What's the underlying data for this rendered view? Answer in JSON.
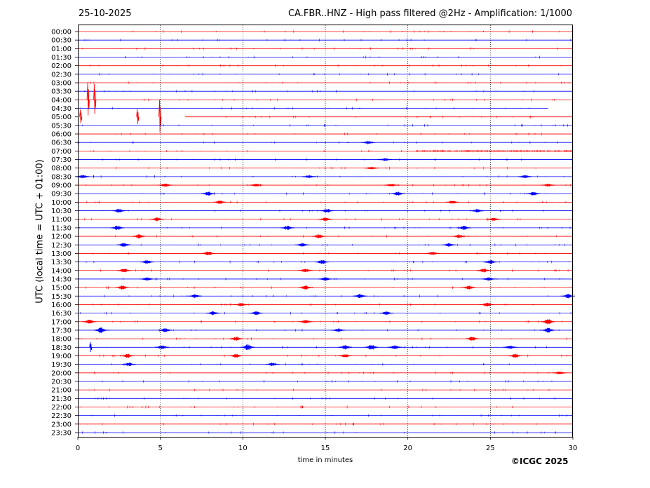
{
  "header": {
    "date": "25-10-2025",
    "title": "CA.FBR..HNZ - High pass filtered @2Hz - Amplification: 1/1000"
  },
  "footer": {
    "copyright": "©ICGC 2025"
  },
  "chart_data": {
    "type": "line",
    "title": "CA.FBR..HNZ - High pass filtered @2Hz - Amplification: 1/1000",
    "xlabel": "time in minutes",
    "ylabel": "UTC (local time = UTC + 01:00)",
    "xlim": [
      0,
      30
    ],
    "x_ticks": [
      0,
      5,
      10,
      15,
      20,
      25,
      30
    ],
    "x_gridlines": [
      5,
      10,
      15,
      20,
      25
    ],
    "grid": "vertical dotted",
    "y_tick_labels": [
      "00:00",
      "00:30",
      "01:00",
      "01:30",
      "02:00",
      "02:30",
      "03:00",
      "03:30",
      "04:00",
      "04:30",
      "05:00",
      "05:30",
      "06:00",
      "06:30",
      "07:00",
      "07:30",
      "08:00",
      "08:30",
      "09:00",
      "09:30",
      "10:00",
      "10:30",
      "11:00",
      "11:30",
      "12:00",
      "12:30",
      "13:00",
      "13:30",
      "14:00",
      "14:30",
      "15:00",
      "15:30",
      "16:00",
      "16:30",
      "17:00",
      "17:30",
      "18:00",
      "18:30",
      "19:00",
      "19:30",
      "20:00",
      "20:30",
      "21:00",
      "21:30",
      "22:00",
      "22:30",
      "23:00",
      "23:30"
    ],
    "trace_colors": [
      "#ff0000",
      "#0000ff"
    ],
    "gap": {
      "trace": "04:30",
      "from_minute": 28.5,
      "to_minute": 30
    },
    "gap_start": {
      "trace": "05:00",
      "from_minute": 0,
      "to_minute": 6.5
    },
    "large_spikes": [
      {
        "trace": "04:00",
        "minute": 0.6,
        "amplitude": 1.0
      },
      {
        "trace": "04:00",
        "minute": 1.0,
        "amplitude": 0.9
      },
      {
        "trace": "05:00",
        "minute": 0.15,
        "amplitude": 0.4
      },
      {
        "trace": "05:00",
        "minute": 3.6,
        "amplitude": 0.45
      },
      {
        "trace": "05:00",
        "minute": 4.95,
        "amplitude": 1.0
      },
      {
        "trace": "18:30",
        "minute": 0.75,
        "amplitude": 0.3
      }
    ],
    "events": [
      {
        "trace": "06:30",
        "minute": 17.6,
        "amplitude": 0.25
      },
      {
        "trace": "07:00",
        "from_minute": 20.5,
        "to_minute": 30,
        "amplitude": 0.15
      },
      {
        "trace": "07:30",
        "minute": 18.6,
        "amplitude": 0.2
      },
      {
        "trace": "08:00",
        "minute": 17.8,
        "amplitude": 0.2
      },
      {
        "trace": "08:30",
        "minute": 0.3,
        "amplitude": 0.25
      },
      {
        "trace": "08:30",
        "minute": 14.0,
        "amplitude": 0.2
      },
      {
        "trace": "08:30",
        "minute": 27.1,
        "amplitude": 0.2
      },
      {
        "trace": "09:00",
        "minute": 5.3,
        "amplitude": 0.25
      },
      {
        "trace": "09:00",
        "minute": 10.8,
        "amplitude": 0.2
      },
      {
        "trace": "09:00",
        "minute": 19.0,
        "amplitude": 0.2
      },
      {
        "trace": "09:00",
        "minute": 28.5,
        "amplitude": 0.2
      },
      {
        "trace": "09:30",
        "minute": 7.9,
        "amplitude": 0.3
      },
      {
        "trace": "09:30",
        "minute": 19.4,
        "amplitude": 0.3
      },
      {
        "trace": "09:30",
        "minute": 27.6,
        "amplitude": 0.25
      },
      {
        "trace": "10:00",
        "minute": 8.6,
        "amplitude": 0.25
      },
      {
        "trace": "10:00",
        "minute": 22.7,
        "amplitude": 0.2
      },
      {
        "trace": "10:30",
        "minute": 2.5,
        "amplitude": 0.3
      },
      {
        "trace": "10:30",
        "minute": 15.1,
        "amplitude": 0.3
      },
      {
        "trace": "10:30",
        "minute": 24.2,
        "amplitude": 0.25
      },
      {
        "trace": "11:00",
        "minute": 4.8,
        "amplitude": 0.3
      },
      {
        "trace": "11:00",
        "minute": 15.0,
        "amplitude": 0.25
      },
      {
        "trace": "11:00",
        "minute": 25.2,
        "amplitude": 0.25
      },
      {
        "trace": "11:30",
        "minute": 2.4,
        "amplitude": 0.35
      },
      {
        "trace": "11:30",
        "minute": 12.7,
        "amplitude": 0.3
      },
      {
        "trace": "11:30",
        "minute": 23.4,
        "amplitude": 0.3
      },
      {
        "trace": "12:00",
        "minute": 3.7,
        "amplitude": 0.3
      },
      {
        "trace": "12:00",
        "minute": 14.6,
        "amplitude": 0.3
      },
      {
        "trace": "12:00",
        "minute": 23.1,
        "amplitude": 0.25
      },
      {
        "trace": "12:30",
        "minute": 2.8,
        "amplitude": 0.3
      },
      {
        "trace": "12:30",
        "minute": 13.6,
        "amplitude": 0.25
      },
      {
        "trace": "12:30",
        "minute": 22.5,
        "amplitude": 0.25
      },
      {
        "trace": "13:00",
        "minute": 7.9,
        "amplitude": 0.3
      },
      {
        "trace": "13:00",
        "minute": 21.5,
        "amplitude": 0.25
      },
      {
        "trace": "13:30",
        "minute": 4.2,
        "amplitude": 0.3
      },
      {
        "trace": "13:30",
        "minute": 14.8,
        "amplitude": 0.3
      },
      {
        "trace": "13:30",
        "minute": 25.0,
        "amplitude": 0.3
      },
      {
        "trace": "14:00",
        "minute": 2.8,
        "amplitude": 0.3
      },
      {
        "trace": "14:00",
        "minute": 13.8,
        "amplitude": 0.3
      },
      {
        "trace": "14:00",
        "minute": 24.6,
        "amplitude": 0.3
      },
      {
        "trace": "14:30",
        "minute": 4.2,
        "amplitude": 0.25
      },
      {
        "trace": "14:30",
        "minute": 15.0,
        "amplitude": 0.25
      },
      {
        "trace": "14:30",
        "minute": 24.9,
        "amplitude": 0.25
      },
      {
        "trace": "15:00",
        "minute": 2.7,
        "amplitude": 0.3
      },
      {
        "trace": "15:00",
        "minute": 13.8,
        "amplitude": 0.3
      },
      {
        "trace": "15:00",
        "minute": 23.7,
        "amplitude": 0.3
      },
      {
        "trace": "15:30",
        "minute": 7.1,
        "amplitude": 0.25
      },
      {
        "trace": "15:30",
        "minute": 17.1,
        "amplitude": 0.3
      },
      {
        "trace": "15:30",
        "minute": 29.7,
        "amplitude": 0.3
      },
      {
        "trace": "16:00",
        "minute": 9.9,
        "amplitude": 0.25
      },
      {
        "trace": "16:00",
        "minute": 24.8,
        "amplitude": 0.3
      },
      {
        "trace": "16:30",
        "minute": 8.2,
        "amplitude": 0.25
      },
      {
        "trace": "16:30",
        "minute": 10.8,
        "amplitude": 0.25
      },
      {
        "trace": "16:30",
        "minute": 18.7,
        "amplitude": 0.25
      },
      {
        "trace": "17:00",
        "minute": 0.7,
        "amplitude": 0.3
      },
      {
        "trace": "17:00",
        "minute": 13.8,
        "amplitude": 0.25
      },
      {
        "trace": "17:00",
        "minute": 28.5,
        "amplitude": 0.45
      },
      {
        "trace": "17:30",
        "minute": 1.4,
        "amplitude": 0.45
      },
      {
        "trace": "17:30",
        "minute": 5.3,
        "amplitude": 0.3
      },
      {
        "trace": "17:30",
        "minute": 15.8,
        "amplitude": 0.25
      },
      {
        "trace": "17:30",
        "minute": 28.5,
        "amplitude": 0.4
      },
      {
        "trace": "18:00",
        "minute": 9.6,
        "amplitude": 0.3
      },
      {
        "trace": "18:00",
        "minute": 23.9,
        "amplitude": 0.3
      },
      {
        "trace": "18:30",
        "minute": 5.1,
        "amplitude": 0.3
      },
      {
        "trace": "18:30",
        "minute": 10.3,
        "amplitude": 0.45
      },
      {
        "trace": "18:30",
        "minute": 16.2,
        "amplitude": 0.35
      },
      {
        "trace": "18:30",
        "minute": 17.8,
        "amplitude": 0.45
      },
      {
        "trace": "18:30",
        "minute": 19.2,
        "amplitude": 0.3
      },
      {
        "trace": "18:30",
        "minute": 26.2,
        "amplitude": 0.25
      },
      {
        "trace": "19:00",
        "minute": 3.0,
        "amplitude": 0.3
      },
      {
        "trace": "19:00",
        "minute": 9.6,
        "amplitude": 0.3
      },
      {
        "trace": "19:00",
        "minute": 16.2,
        "amplitude": 0.25
      },
      {
        "trace": "19:00",
        "minute": 26.5,
        "amplitude": 0.3
      },
      {
        "trace": "19:30",
        "minute": 3.1,
        "amplitude": 0.25
      },
      {
        "trace": "19:30",
        "minute": 11.8,
        "amplitude": 0.25
      },
      {
        "trace": "20:00",
        "minute": 29.2,
        "amplitude": 0.2
      }
    ]
  }
}
